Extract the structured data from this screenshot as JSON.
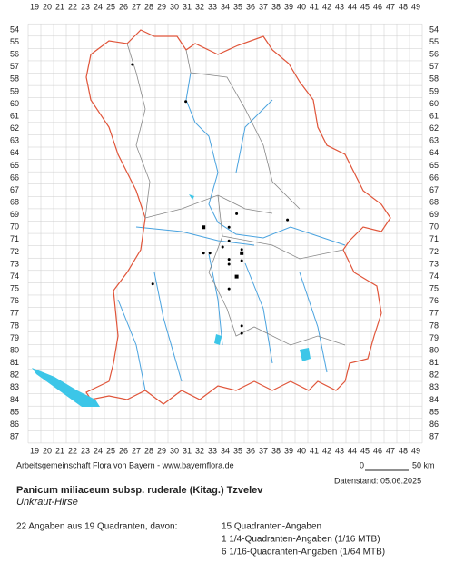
{
  "grid": {
    "columns": [
      19,
      20,
      21,
      22,
      23,
      24,
      25,
      26,
      27,
      28,
      29,
      30,
      31,
      32,
      33,
      34,
      35,
      36,
      37,
      38,
      39,
      40,
      41,
      42,
      43,
      44,
      45,
      46,
      47,
      48,
      49
    ],
    "rows": [
      54,
      55,
      56,
      57,
      58,
      59,
      60,
      61,
      62,
      63,
      64,
      65,
      66,
      67,
      68,
      69,
      70,
      71,
      72,
      73,
      74,
      75,
      76,
      77,
      78,
      79,
      80,
      81,
      82,
      83,
      84,
      85,
      86,
      87
    ]
  },
  "records": [
    {
      "x": 26.7,
      "y": 56.8
    },
    {
      "x": 30.9,
      "y": 59.8
    },
    {
      "x": 34.9,
      "y": 68.9
    },
    {
      "x": 38.9,
      "y": 69.4
    },
    {
      "x": 32.3,
      "y": 70.0,
      "marker": "square"
    },
    {
      "x": 34.3,
      "y": 70.0
    },
    {
      "x": 34.3,
      "y": 71.1
    },
    {
      "x": 35.3,
      "y": 71.8
    },
    {
      "x": 35.3,
      "y": 72.1,
      "marker": "square"
    },
    {
      "x": 33.8,
      "y": 71.6
    },
    {
      "x": 32.3,
      "y": 72.1
    },
    {
      "x": 32.8,
      "y": 72.1
    },
    {
      "x": 34.3,
      "y": 72.6
    },
    {
      "x": 34.3,
      "y": 73.0
    },
    {
      "x": 35.3,
      "y": 72.7
    },
    {
      "x": 34.9,
      "y": 74.0,
      "marker": "square"
    },
    {
      "x": 28.3,
      "y": 74.6
    },
    {
      "x": 34.3,
      "y": 75.0
    },
    {
      "x": 35.3,
      "y": 78.0
    },
    {
      "x": 35.3,
      "y": 78.6
    }
  ],
  "footer": {
    "credit": "Arbeitsgemeinschaft Flora von Bayern - www.bayernflora.de",
    "scale_start": "0",
    "scale_end": "50 km",
    "date": "Datenstand: 05.06.2025",
    "title": "Panicum miliaceum subsp. ruderale (Kitag.) Tzvelev",
    "common_name": "Unkraut-Hirse",
    "summary": "22 Angaben aus 19 Quadranten, davon:",
    "counts": [
      "15 Quadranten-Angaben",
      "1 1/4-Quadranten-Angaben (1/16 MTB)",
      "6 1/16-Quadranten-Angaben (1/64 MTB)"
    ]
  }
}
